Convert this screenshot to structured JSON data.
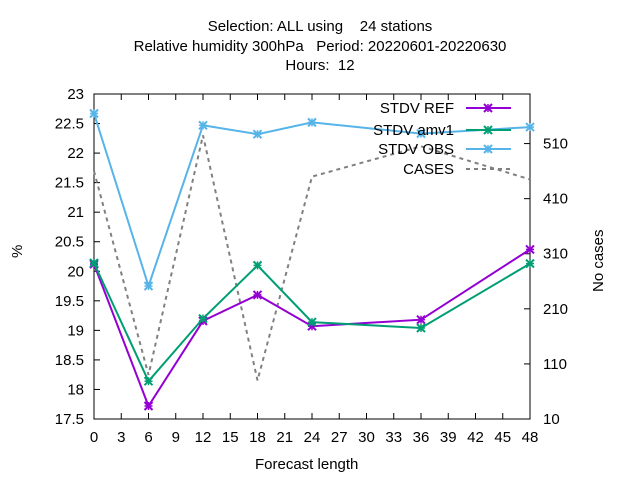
{
  "chart_data": {
    "type": "line",
    "title_lines": [
      "Selection: ALL using    24 stations",
      "Relative humidity 300hPa   Period: 20220601-20220630",
      "Hours:  12"
    ],
    "xlabel": "Forecast length",
    "ylabel": "%",
    "y2label": "No cases",
    "xlim": [
      0,
      48
    ],
    "ylim": [
      17.5,
      23
    ],
    "y2lim": [
      10,
      600
    ],
    "x_ticks": [
      0,
      3,
      6,
      9,
      12,
      15,
      18,
      21,
      24,
      27,
      30,
      33,
      36,
      39,
      42,
      45,
      48
    ],
    "y_ticks": [
      "17.5",
      "18",
      "18.5",
      "19",
      "19.5",
      "20",
      "20.5",
      "21",
      "21.5",
      "22",
      "22.5",
      "23"
    ],
    "y2_ticks": [
      "10",
      "110",
      "210",
      "310",
      "410",
      "510"
    ],
    "grid": false,
    "legend_position": "top-right",
    "series": [
      {
        "name": "STDV REF",
        "axis": "y",
        "color": "#9400d3",
        "style": "solid",
        "marker": "x",
        "x": [
          0,
          6,
          12,
          18,
          24,
          36,
          48
        ],
        "values": [
          20.12,
          17.72,
          19.16,
          19.6,
          19.07,
          19.18,
          20.37
        ]
      },
      {
        "name": "STDV amv1",
        "axis": "y",
        "color": "#009e73",
        "style": "solid",
        "marker": "x",
        "x": [
          0,
          6,
          12,
          18,
          24,
          36,
          48
        ],
        "values": [
          20.14,
          18.14,
          19.2,
          20.1,
          19.14,
          19.04,
          20.13
        ]
      },
      {
        "name": "STDV OBS",
        "axis": "y",
        "color": "#56b4e9",
        "style": "solid",
        "marker": "x",
        "x": [
          0,
          6,
          12,
          18,
          24,
          36,
          48
        ],
        "values": [
          22.67,
          19.75,
          22.47,
          22.32,
          22.52,
          22.33,
          22.44
        ]
      },
      {
        "name": "CASES",
        "axis": "y2",
        "color": "#808080",
        "style": "dashed",
        "marker": "none",
        "x": [
          0,
          6,
          12,
          18,
          24,
          36,
          48
        ],
        "values": [
          460,
          90,
          525,
          80,
          450,
          505,
          445
        ]
      }
    ]
  }
}
